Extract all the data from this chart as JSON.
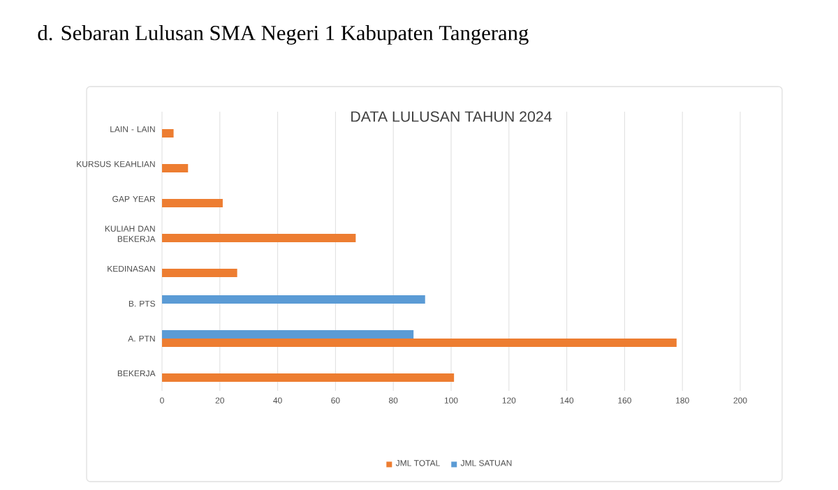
{
  "chart_data": {
    "type": "bar",
    "orientation": "horizontal",
    "title": "d.  Sebaran Lulusan SMA Negeri 1 Kabupaten Tangerang",
    "subtitle": "DATA LULUSAN TAHUN 2024",
    "categories": [
      "LAIN - LAIN",
      "KURSUS KEAHLIAN",
      "GAP YEAR",
      "KULIAH DAN BEKERJA",
      "KEDINASAN",
      "B. PTS",
      "A. PTN",
      "BEKERJA"
    ],
    "series": [
      {
        "name": "JML TOTAL",
        "color": "#ed7d31",
        "values": [
          4,
          9,
          21,
          67,
          26,
          null,
          178,
          101
        ]
      },
      {
        "name": "JML SATUAN",
        "color": "#5b9bd5",
        "values": [
          null,
          null,
          null,
          null,
          null,
          91,
          87,
          null
        ]
      }
    ],
    "xlim": [
      0,
      200
    ],
    "xticks": [
      0,
      20,
      40,
      60,
      80,
      100,
      120,
      140,
      160,
      180,
      200
    ],
    "grid": "x",
    "legend": "bottom"
  }
}
